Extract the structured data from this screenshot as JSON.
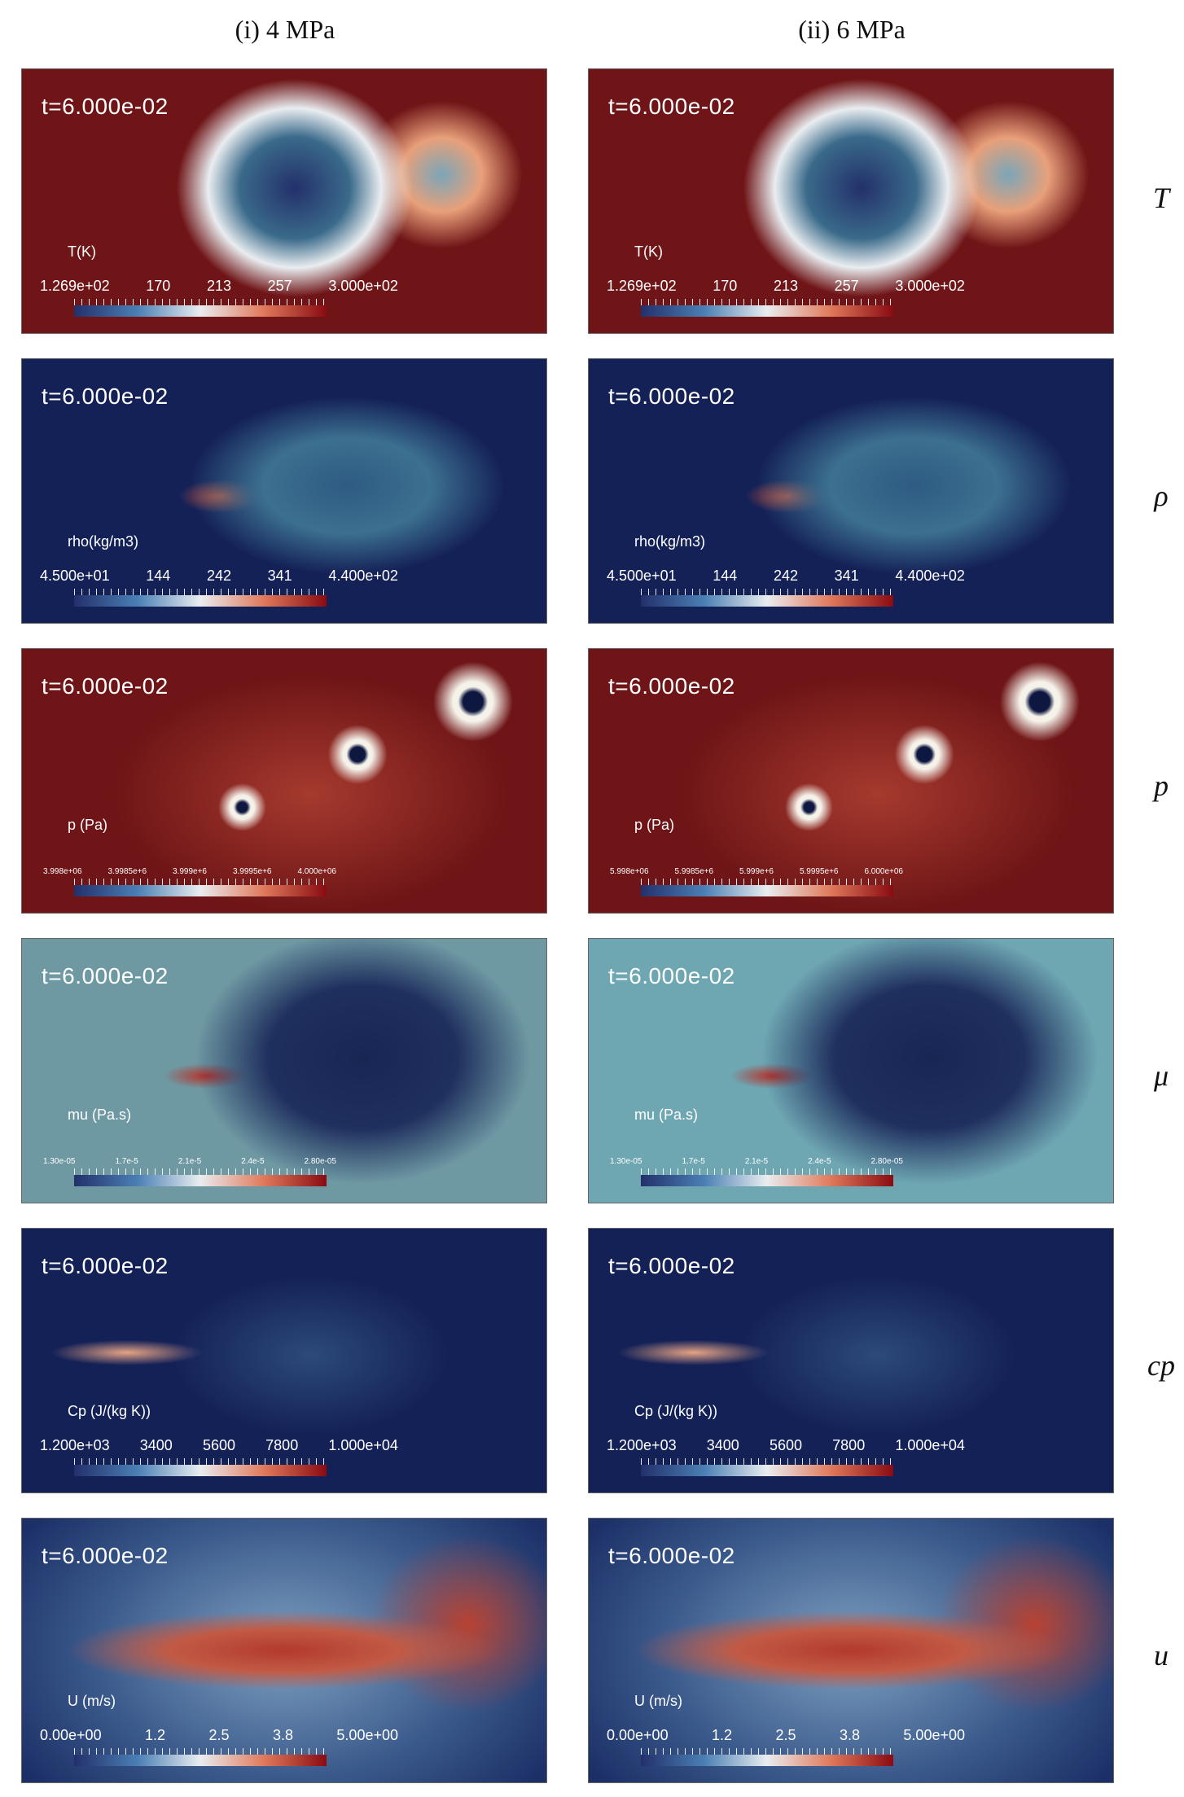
{
  "columns": [
    "(i) 4 MPa",
    "(ii) 6 MPa"
  ],
  "row_labels": [
    "T",
    "ρ",
    "p",
    "μ",
    "cp",
    "u"
  ],
  "colors": {
    "cmap_low": "#23306b",
    "cmap_mid": "#e9edf0",
    "cmap_high": "#8a0b12",
    "bg_red": "#6f1517",
    "bg_navy": "#142157",
    "bg_teal": "#6e99a3",
    "bg_cyan": "#6ea6b2",
    "bg_blue": "#1c3067"
  },
  "panels": [
    {
      "id": "T-4",
      "time": "t=6.000e-02",
      "var": "T(K)",
      "ticks": [
        "1.269e+02",
        "170",
        "213",
        "257",
        "3.000e+02"
      ],
      "field_color": "bg_red",
      "small_ticks": false
    },
    {
      "id": "T-6",
      "time": "t=6.000e-02",
      "var": "T(K)",
      "ticks": [
        "1.269e+02",
        "170",
        "213",
        "257",
        "3.000e+02"
      ],
      "field_color": "bg_red",
      "small_ticks": false
    },
    {
      "id": "rho-4",
      "time": "t=6.000e-02",
      "var": "rho(kg/m3)",
      "ticks": [
        "4.500e+01",
        "144",
        "242",
        "341",
        "4.400e+02"
      ],
      "field_color": "bg_navy",
      "small_ticks": false
    },
    {
      "id": "rho-6",
      "time": "t=6.000e-02",
      "var": "rho(kg/m3)",
      "ticks": [
        "4.500e+01",
        "144",
        "242",
        "341",
        "4.400e+02"
      ],
      "field_color": "bg_navy",
      "small_ticks": false
    },
    {
      "id": "p-4",
      "time": "t=6.000e-02",
      "var": "p (Pa)",
      "ticks": [
        "3.998e+06",
        "3.9985e+6",
        "3.999e+6",
        "3.9995e+6",
        "4.000e+06"
      ],
      "field_color": "bg_red",
      "small_ticks": true
    },
    {
      "id": "p-6",
      "time": "t=6.000e-02",
      "var": "p (Pa)",
      "ticks": [
        "5.998e+06",
        "5.9985e+6",
        "5.999e+6",
        "5.9995e+6",
        "6.000e+06"
      ],
      "field_color": "bg_red",
      "small_ticks": true
    },
    {
      "id": "mu-4",
      "time": "t=6.000e-02",
      "var": "mu (Pa.s)",
      "ticks": [
        "1.30e-05",
        "1.7e-5",
        "2.1e-5",
        "2.4e-5",
        "2.80e-05"
      ],
      "field_color": "bg_teal",
      "small_ticks": true
    },
    {
      "id": "mu-6",
      "time": "t=6.000e-02",
      "var": "mu (Pa.s)",
      "ticks": [
        "1.30e-05",
        "1.7e-5",
        "2.1e-5",
        "2.4e-5",
        "2.80e-05"
      ],
      "field_color": "bg_cyan",
      "small_ticks": true
    },
    {
      "id": "cp-4",
      "time": "t=6.000e-02",
      "var": "Cp (J/(kg K))",
      "ticks": [
        "1.200e+03",
        "3400",
        "5600",
        "7800",
        "1.000e+04"
      ],
      "field_color": "bg_navy",
      "small_ticks": false
    },
    {
      "id": "cp-6",
      "time": "t=6.000e-02",
      "var": "Cp (J/(kg K))",
      "ticks": [
        "1.200e+03",
        "3400",
        "5600",
        "7800",
        "1.000e+04"
      ],
      "field_color": "bg_navy",
      "small_ticks": false
    },
    {
      "id": "u-4",
      "time": "t=6.000e-02",
      "var": "U (m/s)",
      "ticks": [
        "0.00e+00",
        "1.2",
        "2.5",
        "3.8",
        "5.00e+00"
      ],
      "field_color": "bg_blue",
      "small_ticks": false
    },
    {
      "id": "u-6",
      "time": "t=6.000e-02",
      "var": "U (m/s)",
      "ticks": [
        "0.00e+00",
        "1.2",
        "2.5",
        "3.8",
        "5.00e+00"
      ],
      "field_color": "bg_blue",
      "small_ticks": false
    }
  ]
}
